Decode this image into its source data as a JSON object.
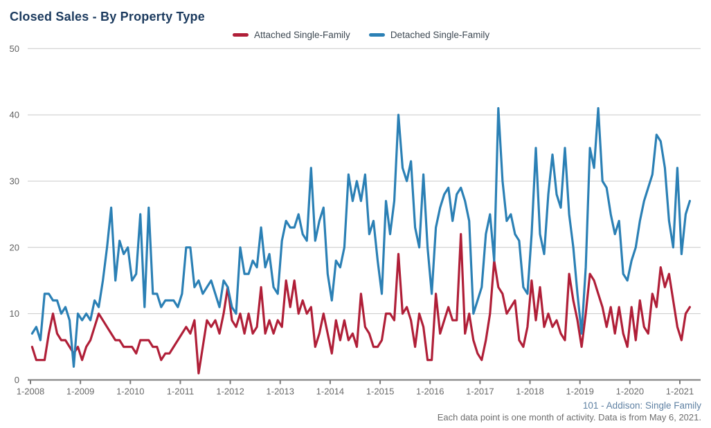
{
  "header": {
    "title": "Closed Sales - By Property Type"
  },
  "legend": [
    {
      "label": "Attached Single-Family",
      "color": "#b01f38"
    },
    {
      "label": "Detached Single-Family",
      "color": "#2b80b5"
    }
  ],
  "footnotes": {
    "source": "101 - Addison: Single Family",
    "note": "Each data point is one month of activity. Data is from May 6, 2021."
  },
  "chart_data": {
    "type": "line",
    "title": "Closed Sales - By Property Type",
    "x_start": "2008-01",
    "x_end": "2021-03",
    "points_per_month": 1,
    "x_tick_labels": [
      "1-2008",
      "1-2009",
      "1-2010",
      "1-2011",
      "1-2012",
      "1-2013",
      "1-2014",
      "1-2015",
      "1-2016",
      "1-2017",
      "1-2018",
      "1-2019",
      "1-2020",
      "1-2021"
    ],
    "y_ticks": [
      0,
      10,
      20,
      30,
      40,
      50
    ],
    "ylim": [
      0,
      50
    ],
    "grid": "horizontal",
    "legend_position": "top",
    "colors": {
      "grid": "#c9c9c9",
      "axis": "#7a7a7a"
    },
    "series": [
      {
        "name": "Attached Single-Family",
        "color": "#b01f38",
        "values": [
          5,
          3,
          3,
          3,
          7,
          10,
          7,
          6,
          6,
          5,
          4,
          5,
          3,
          5,
          6,
          8,
          10,
          9,
          8,
          7,
          6,
          6,
          5,
          5,
          5,
          4,
          6,
          6,
          6,
          5,
          5,
          3,
          4,
          4,
          5,
          6,
          7,
          8,
          7,
          9,
          1,
          5,
          9,
          8,
          9,
          7,
          10,
          14,
          9,
          8,
          10,
          7,
          10,
          7,
          8,
          14,
          7,
          9,
          7,
          9,
          8,
          15,
          11,
          15,
          10,
          12,
          10,
          11,
          5,
          7,
          10,
          7,
          4,
          9,
          6,
          9,
          6,
          7,
          5,
          13,
          8,
          7,
          5,
          5,
          6,
          10,
          10,
          9,
          19,
          10,
          11,
          9,
          5,
          10,
          8,
          3,
          3,
          13,
          7,
          9,
          11,
          9,
          9,
          22,
          7,
          10,
          6,
          4,
          3,
          6,
          10,
          18,
          14,
          13,
          10,
          11,
          12,
          6,
          5,
          8,
          15,
          9,
          14,
          8,
          10,
          8,
          9,
          7,
          6,
          16,
          12,
          9,
          5,
          10,
          16,
          15,
          13,
          11,
          8,
          11,
          7,
          11,
          7,
          5,
          11,
          6,
          12,
          8,
          7,
          13,
          11,
          17,
          14,
          16,
          12,
          8,
          6,
          10,
          11
        ]
      },
      {
        "name": "Detached Single-Family",
        "color": "#2b80b5",
        "values": [
          7,
          8,
          6,
          13,
          13,
          12,
          12,
          10,
          11,
          9,
          2,
          10,
          9,
          10,
          9,
          12,
          11,
          15,
          20,
          26,
          15,
          21,
          19,
          20,
          15,
          16,
          25,
          11,
          26,
          13,
          13,
          11,
          12,
          12,
          12,
          11,
          13,
          20,
          20,
          14,
          15,
          13,
          14,
          15,
          13,
          11,
          15,
          14,
          11,
          10,
          20,
          16,
          16,
          18,
          17,
          23,
          17,
          19,
          14,
          13,
          21,
          24,
          23,
          23,
          25,
          22,
          21,
          32,
          21,
          24,
          26,
          16,
          12,
          18,
          17,
          20,
          31,
          27,
          30,
          27,
          31,
          22,
          24,
          18,
          13,
          27,
          22,
          27,
          40,
          32,
          30,
          33,
          23,
          20,
          31,
          20,
          13,
          23,
          26,
          28,
          29,
          24,
          28,
          29,
          27,
          24,
          10,
          12,
          14,
          22,
          25,
          18,
          41,
          30,
          24,
          25,
          22,
          21,
          14,
          13,
          22,
          35,
          22,
          19,
          28,
          34,
          28,
          26,
          35,
          25,
          20,
          13,
          7,
          17,
          35,
          32,
          41,
          30,
          29,
          25,
          22,
          24,
          16,
          15,
          18,
          20,
          24,
          27,
          29,
          31,
          37,
          36,
          32,
          24,
          20,
          32,
          19,
          25,
          27
        ]
      }
    ]
  }
}
